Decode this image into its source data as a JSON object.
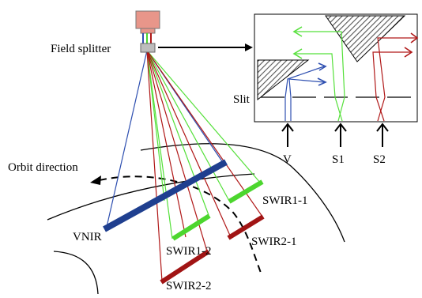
{
  "labels": {
    "field_splitter": "Field splitter",
    "orbit_direction": "Orbit direction",
    "slit": "Slit",
    "vnir": "VNIR",
    "swir1_1": "SWIR1-1",
    "swir1_2": "SWIR1-2",
    "swir2_1": "SWIR2-1",
    "swir2_2": "SWIR2-2",
    "v": "V",
    "s1": "S1",
    "s2": "S2"
  },
  "colors": {
    "vnir": "#1f3f8f",
    "swir1": "#4cd62e",
    "swir2": "#a11414",
    "ray_blue": "#2e4fb0",
    "ray_green": "#55e03a",
    "ray_red": "#b01818",
    "telescope": "#e8968a"
  }
}
